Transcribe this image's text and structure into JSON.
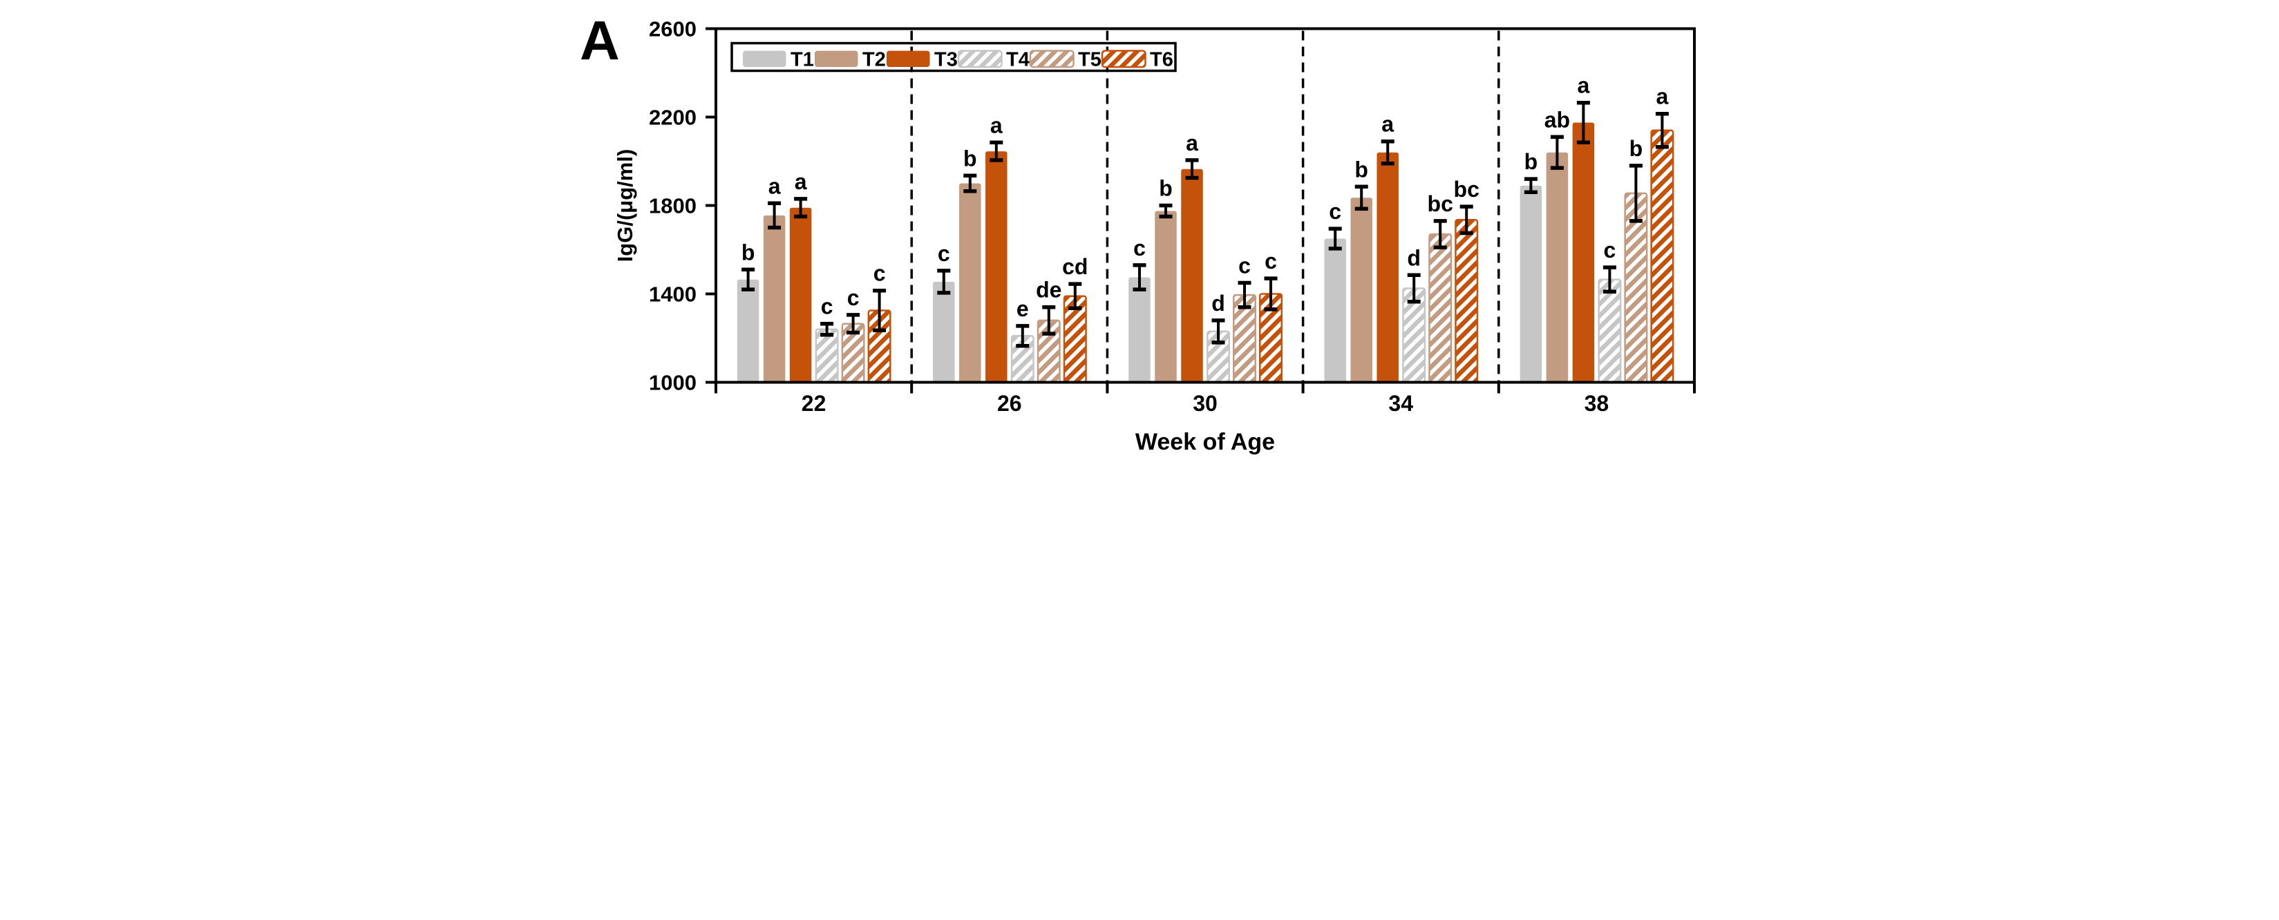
{
  "panel_label": "A",
  "chart_data": {
    "type": "bar",
    "title": "",
    "xlabel": "Week of Age",
    "ylabel": "IgG/(μg/ml)",
    "ylim": [
      1000,
      2600
    ],
    "yticks": [
      1000,
      1400,
      1800,
      2200,
      2600
    ],
    "ytick_labels": [
      "1000",
      "1400",
      "1800",
      "2200",
      "2600"
    ],
    "categories": [
      "22",
      "26",
      "30",
      "34",
      "38"
    ],
    "grid": false,
    "legend_position": "top-left-inside",
    "group_separator_style": "dashed",
    "error_bars": true,
    "colors": {
      "gray": "#C6C6C6",
      "tan": "#C29B80",
      "orange": "#C5520A",
      "hatch_stripe": "#FFFFFF",
      "axis": "#000000",
      "background": "#FFFFFF"
    },
    "series": [
      {
        "name": "T1",
        "color": "#C6C6C6",
        "hatch": false,
        "values": [
          1465,
          1455,
          1475,
          1650,
          1890
        ],
        "errors": [
          45,
          50,
          55,
          45,
          30
        ],
        "letters": [
          "b",
          "c",
          "c",
          "c",
          "b"
        ]
      },
      {
        "name": "T2",
        "color": "#C29B80",
        "hatch": false,
        "values": [
          1755,
          1900,
          1775,
          1835,
          2040
        ],
        "errors": [
          55,
          35,
          25,
          50,
          70
        ],
        "letters": [
          "a",
          "b",
          "b",
          "b",
          "ab"
        ]
      },
      {
        "name": "T3",
        "color": "#C5520A",
        "hatch": false,
        "values": [
          1790,
          2045,
          1965,
          2040,
          2175
        ],
        "errors": [
          40,
          40,
          40,
          50,
          90
        ],
        "letters": [
          "a",
          "a",
          "a",
          "a",
          "a"
        ]
      },
      {
        "name": "T4",
        "color": "#C6C6C6",
        "hatch": true,
        "values": [
          1240,
          1210,
          1230,
          1425,
          1465
        ],
        "errors": [
          25,
          45,
          50,
          60,
          55
        ],
        "letters": [
          "c",
          "e",
          "d",
          "d",
          "c"
        ]
      },
      {
        "name": "T5",
        "color": "#C29B80",
        "hatch": true,
        "values": [
          1265,
          1280,
          1395,
          1670,
          1855
        ],
        "errors": [
          40,
          60,
          55,
          60,
          125
        ],
        "letters": [
          "c",
          "de",
          "c",
          "bc",
          "b"
        ]
      },
      {
        "name": "T6",
        "color": "#C5520A",
        "hatch": true,
        "values": [
          1325,
          1390,
          1400,
          1735,
          2140
        ],
        "errors": [
          90,
          55,
          70,
          60,
          75
        ],
        "letters": [
          "c",
          "cd",
          "c",
          "bc",
          "a"
        ]
      }
    ]
  }
}
